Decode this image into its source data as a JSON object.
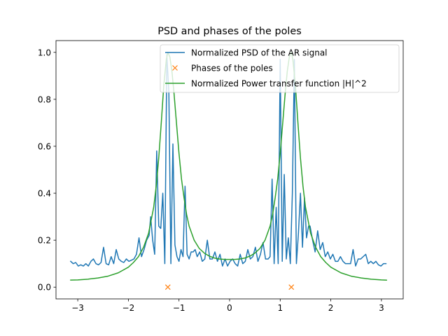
{
  "chart_data": {
    "type": "line",
    "title": "PSD and phases of the poles",
    "xlabel": "",
    "ylabel": "",
    "xlim": [
      -3.43,
      3.43
    ],
    "ylim": [
      -0.05,
      1.05
    ],
    "grid": false,
    "legend_position": "top-right",
    "xticks": [
      -3,
      -2,
      -1,
      0,
      1,
      2,
      3
    ],
    "xtick_labels": [
      "−3",
      "−2",
      "−1",
      "0",
      "1",
      "2",
      "3"
    ],
    "yticks": [
      0.0,
      0.2,
      0.4,
      0.6,
      0.8,
      1.0
    ],
    "ytick_labels": [
      "0.0",
      "0.2",
      "0.4",
      "0.6",
      "0.8",
      "1.0"
    ],
    "series": [
      {
        "name": "Normalized PSD of the AR signal",
        "kind": "line",
        "color": "#1f77b4",
        "x": [
          -3.14,
          -3.09,
          -3.04,
          -2.99,
          -2.94,
          -2.89,
          -2.84,
          -2.79,
          -2.74,
          -2.69,
          -2.64,
          -2.59,
          -2.54,
          -2.49,
          -2.44,
          -2.39,
          -2.34,
          -2.29,
          -2.24,
          -2.19,
          -2.14,
          -2.09,
          -2.04,
          -1.99,
          -1.94,
          -1.89,
          -1.84,
          -1.79,
          -1.74,
          -1.69,
          -1.64,
          -1.59,
          -1.56,
          -1.52,
          -1.48,
          -1.44,
          -1.4,
          -1.36,
          -1.32,
          -1.28,
          -1.24,
          -1.2,
          -1.16,
          -1.12,
          -1.08,
          -1.04,
          -1.0,
          -0.96,
          -0.92,
          -0.88,
          -0.84,
          -0.8,
          -0.76,
          -0.72,
          -0.68,
          -0.64,
          -0.59,
          -0.54,
          -0.49,
          -0.44,
          -0.39,
          -0.34,
          -0.29,
          -0.24,
          -0.19,
          -0.14,
          -0.09,
          -0.04,
          0.01,
          0.06,
          0.11,
          0.16,
          0.21,
          0.26,
          0.31,
          0.36,
          0.41,
          0.46,
          0.51,
          0.56,
          0.61,
          0.66,
          0.71,
          0.76,
          0.8,
          0.84,
          0.88,
          0.92,
          0.96,
          1.0,
          1.04,
          1.08,
          1.12,
          1.16,
          1.2,
          1.24,
          1.28,
          1.32,
          1.36,
          1.4,
          1.44,
          1.48,
          1.52,
          1.56,
          1.59,
          1.64,
          1.69,
          1.74,
          1.79,
          1.84,
          1.89,
          1.94,
          1.99,
          2.04,
          2.09,
          2.14,
          2.19,
          2.24,
          2.29,
          2.34,
          2.39,
          2.44,
          2.49,
          2.54,
          2.59,
          2.64,
          2.69,
          2.74,
          2.79,
          2.84,
          2.89,
          2.94,
          2.99,
          3.04,
          3.09
        ],
        "y": [
          0.11,
          0.1,
          0.105,
          0.09,
          0.095,
          0.09,
          0.1,
          0.09,
          0.11,
          0.12,
          0.1,
          0.095,
          0.105,
          0.17,
          0.1,
          0.095,
          0.13,
          0.1,
          0.16,
          0.12,
          0.11,
          0.105,
          0.12,
          0.11,
          0.115,
          0.12,
          0.14,
          0.21,
          0.13,
          0.16,
          0.2,
          0.22,
          0.3,
          0.2,
          0.14,
          0.58,
          0.26,
          0.25,
          0.4,
          0.1,
          0.99,
          0.83,
          0.1,
          0.61,
          0.18,
          0.13,
          0.11,
          0.16,
          0.13,
          0.43,
          0.14,
          0.12,
          0.15,
          0.15,
          0.16,
          0.13,
          0.15,
          0.11,
          0.12,
          0.2,
          0.12,
          0.12,
          0.15,
          0.11,
          0.14,
          0.09,
          0.12,
          0.09,
          0.11,
          0.12,
          0.1,
          0.09,
          0.14,
          0.1,
          0.11,
          0.16,
          0.12,
          0.13,
          0.17,
          0.11,
          0.14,
          0.19,
          0.12,
          0.12,
          0.13,
          0.46,
          0.1,
          0.34,
          0.1,
          0.97,
          0.11,
          0.48,
          0.12,
          0.21,
          0.1,
          0.4,
          0.97,
          0.1,
          0.23,
          0.4,
          0.17,
          0.38,
          0.21,
          0.26,
          0.26,
          0.2,
          0.15,
          0.24,
          0.16,
          0.19,
          0.13,
          0.15,
          0.12,
          0.14,
          0.11,
          0.11,
          0.13,
          0.11,
          0.1,
          0.1,
          0.1,
          0.16,
          0.09,
          0.12,
          0.12,
          0.13,
          0.14,
          0.1,
          0.11,
          0.1,
          0.11,
          0.095,
          0.09,
          0.1,
          0.1
        ]
      },
      {
        "name": "Phases of the poles",
        "kind": "scatter",
        "marker": "x",
        "color": "#ff7f0e",
        "x": [
          -1.22,
          1.22
        ],
        "y": [
          0.0,
          0.0
        ]
      },
      {
        "name": "Normalized Power transfer function |H|^2",
        "kind": "line",
        "color": "#2ca02c",
        "x": [
          -3.14,
          -3.0,
          -2.8,
          -2.6,
          -2.4,
          -2.2,
          -2.0,
          -1.9,
          -1.8,
          -1.7,
          -1.6,
          -1.5,
          -1.45,
          -1.4,
          -1.35,
          -1.3,
          -1.25,
          -1.22,
          -1.18,
          -1.14,
          -1.1,
          -1.05,
          -1.0,
          -0.95,
          -0.9,
          -0.85,
          -0.8,
          -0.7,
          -0.6,
          -0.5,
          -0.4,
          -0.3,
          -0.2,
          -0.1,
          0.0,
          0.1,
          0.2,
          0.3,
          0.4,
          0.5,
          0.6,
          0.7,
          0.8,
          0.85,
          0.9,
          0.95,
          1.0,
          1.05,
          1.1,
          1.14,
          1.18,
          1.22,
          1.25,
          1.3,
          1.35,
          1.4,
          1.45,
          1.5,
          1.6,
          1.7,
          1.8,
          1.9,
          2.0,
          2.2,
          2.4,
          2.6,
          2.8,
          3.0,
          3.1
        ],
        "y": [
          0.03,
          0.031,
          0.034,
          0.039,
          0.047,
          0.061,
          0.085,
          0.105,
          0.13,
          0.17,
          0.23,
          0.34,
          0.43,
          0.55,
          0.7,
          0.86,
          0.97,
          1.0,
          0.98,
          0.92,
          0.83,
          0.7,
          0.57,
          0.46,
          0.38,
          0.31,
          0.26,
          0.2,
          0.165,
          0.145,
          0.132,
          0.124,
          0.12,
          0.118,
          0.118,
          0.118,
          0.12,
          0.124,
          0.132,
          0.145,
          0.165,
          0.2,
          0.26,
          0.31,
          0.38,
          0.46,
          0.57,
          0.7,
          0.83,
          0.92,
          0.98,
          1.0,
          0.97,
          0.86,
          0.7,
          0.55,
          0.43,
          0.34,
          0.23,
          0.17,
          0.13,
          0.105,
          0.085,
          0.061,
          0.047,
          0.039,
          0.034,
          0.031,
          0.03
        ]
      }
    ]
  }
}
